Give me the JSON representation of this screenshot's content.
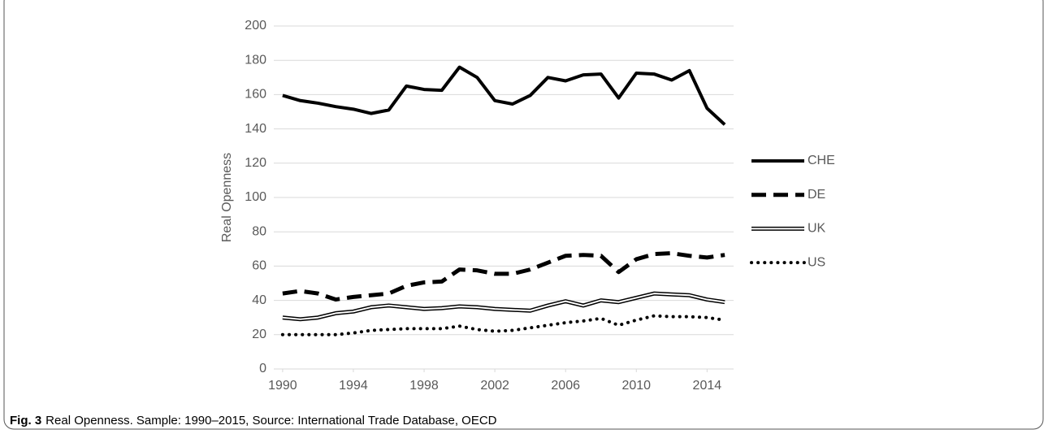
{
  "chart_data": {
    "type": "line",
    "caption": {
      "label": "Fig. 3",
      "text": "Real Openness. Sample: 1990–2015, Source: International Trade Database, OECD"
    },
    "y_label": "Real Openness",
    "x": [
      1990,
      1991,
      1992,
      1993,
      1994,
      1995,
      1996,
      1997,
      1998,
      1999,
      2000,
      2001,
      2002,
      2003,
      2004,
      2005,
      2006,
      2007,
      2008,
      2009,
      2010,
      2011,
      2012,
      2013,
      2014,
      2015
    ],
    "xlim": [
      1989.5,
      2015.5
    ],
    "xticks": [
      1990,
      1994,
      1998,
      2002,
      2006,
      2010,
      2014
    ],
    "ylim": [
      0,
      200
    ],
    "yticks": [
      0,
      20,
      40,
      60,
      80,
      100,
      120,
      140,
      160,
      180,
      200
    ],
    "grid": true,
    "legend": "right",
    "series": [
      {
        "name": "CHE",
        "color": "#000000",
        "style": "solid",
        "values": [
          159.5,
          156.5,
          155,
          153,
          151.5,
          149,
          151,
          165,
          163,
          162.5,
          176,
          170,
          156.5,
          154.5,
          159.5,
          170,
          168,
          171.5,
          172,
          158,
          172.5,
          172,
          168.5,
          174,
          152,
          142.5
        ]
      },
      {
        "name": "DE",
        "color": "#000000",
        "style": "dashed",
        "values": [
          44,
          45.5,
          44,
          40.5,
          42,
          43,
          44,
          48.5,
          50.5,
          51,
          58,
          57.5,
          55.5,
          55.5,
          58,
          62,
          66,
          66.5,
          66,
          56.5,
          64,
          67,
          67.5,
          66,
          65,
          66.5
        ]
      },
      {
        "name": "UK",
        "color": "#000000",
        "style": "double",
        "values": [
          30,
          29,
          30,
          32.5,
          33.5,
          36,
          37,
          36,
          35,
          35.5,
          36.5,
          36,
          35,
          34.5,
          34,
          37,
          39.5,
          37,
          40,
          39,
          41.5,
          44,
          43.5,
          43,
          40.5,
          39
        ]
      },
      {
        "name": "US",
        "color": "#000000",
        "style": "dotted",
        "values": [
          20,
          20,
          20,
          20,
          21,
          22.5,
          23,
          23.5,
          23.5,
          23.5,
          25,
          23,
          22,
          22.5,
          24,
          25.5,
          27,
          28,
          29.5,
          25.5,
          28.5,
          31,
          30.5,
          30.5,
          30,
          28.5
        ]
      }
    ]
  }
}
